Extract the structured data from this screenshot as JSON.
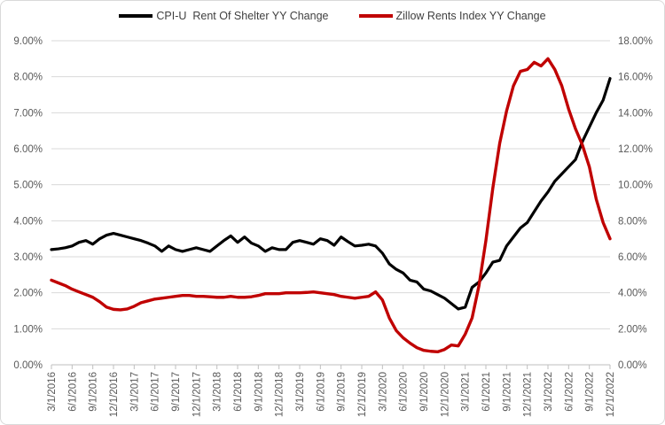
{
  "chart_data": {
    "type": "line",
    "title": "",
    "legend_position": "top",
    "grid": true,
    "x_start": "3/1/2016",
    "x_end": "12/1/2022",
    "x_interval": "monthly",
    "x_tick_labels": [
      "3/1/2016",
      "6/1/2016",
      "9/1/2016",
      "12/1/2016",
      "3/1/2017",
      "6/1/2017",
      "9/1/2017",
      "12/1/2017",
      "3/1/2018",
      "6/1/2018",
      "9/1/2018",
      "12/1/2018",
      "3/1/2019",
      "6/1/2019",
      "9/1/2019",
      "12/1/2019",
      "3/1/2020",
      "6/1/2020",
      "9/1/2020",
      "12/1/2020",
      "3/1/2021",
      "6/1/2021",
      "9/1/2021",
      "12/1/2021",
      "3/1/2022",
      "6/1/2022",
      "9/1/2022",
      "12/1/2022"
    ],
    "left_axis": {
      "min": 0,
      "max": 9,
      "step": 1,
      "tick_labels": [
        "0.00%",
        "1.00%",
        "2.00%",
        "3.00%",
        "4.00%",
        "5.00%",
        "6.00%",
        "7.00%",
        "8.00%",
        "9.00%"
      ]
    },
    "right_axis": {
      "min": 0,
      "max": 18,
      "step": 2,
      "tick_labels": [
        "0.00%",
        "2.00%",
        "4.00%",
        "6.00%",
        "8.00%",
        "10.00%",
        "12.00%",
        "14.00%",
        "16.00%",
        "18.00%"
      ]
    },
    "series": [
      {
        "name": "CPI-U  Rent Of Shelter YY Change",
        "color": "#000000",
        "axis": "left",
        "values": [
          3.2,
          3.22,
          3.25,
          3.3,
          3.4,
          3.45,
          3.35,
          3.5,
          3.6,
          3.65,
          3.6,
          3.55,
          3.5,
          3.45,
          3.38,
          3.3,
          3.15,
          3.3,
          3.2,
          3.15,
          3.2,
          3.25,
          3.2,
          3.15,
          3.3,
          3.45,
          3.58,
          3.4,
          3.55,
          3.38,
          3.3,
          3.15,
          3.25,
          3.2,
          3.2,
          3.4,
          3.45,
          3.4,
          3.35,
          3.5,
          3.45,
          3.32,
          3.55,
          3.42,
          3.3,
          3.32,
          3.35,
          3.3,
          3.1,
          2.8,
          2.65,
          2.55,
          2.35,
          2.3,
          2.1,
          2.05,
          1.95,
          1.85,
          1.7,
          1.55,
          1.6,
          2.15,
          2.3,
          2.55,
          2.85,
          2.9,
          3.3,
          3.55,
          3.8,
          3.95,
          4.25,
          4.55,
          4.8,
          5.1,
          5.3,
          5.5,
          5.7,
          6.2,
          6.6,
          7.0,
          7.35,
          7.95
        ]
      },
      {
        "name": "Zillow Rents Index YY Change",
        "color": "#C00000",
        "axis": "right",
        "values": [
          4.7,
          4.55,
          4.4,
          4.2,
          4.05,
          3.9,
          3.75,
          3.5,
          3.2,
          3.08,
          3.05,
          3.1,
          3.25,
          3.45,
          3.55,
          3.65,
          3.7,
          3.75,
          3.8,
          3.85,
          3.85,
          3.8,
          3.8,
          3.78,
          3.75,
          3.75,
          3.8,
          3.75,
          3.75,
          3.78,
          3.85,
          3.95,
          3.95,
          3.95,
          4.0,
          4.0,
          4.0,
          4.02,
          4.05,
          4.0,
          3.95,
          3.9,
          3.8,
          3.75,
          3.7,
          3.75,
          3.8,
          4.05,
          3.6,
          2.6,
          1.9,
          1.5,
          1.2,
          0.95,
          0.8,
          0.75,
          0.72,
          0.85,
          1.1,
          1.05,
          1.7,
          2.6,
          4.4,
          6.9,
          9.8,
          12.3,
          14.1,
          15.5,
          16.3,
          16.4,
          16.8,
          16.6,
          17.0,
          16.4,
          15.5,
          14.2,
          13.1,
          12.2,
          11.0,
          9.2,
          7.9,
          7.0
        ]
      }
    ]
  },
  "colors": {
    "background": "#FFFFFF",
    "border": "#D9D9D9",
    "gridline": "#D9D9D9",
    "axis_line": "#BFBFBF",
    "tick_text": "#595959",
    "legend_text": "#404040"
  }
}
